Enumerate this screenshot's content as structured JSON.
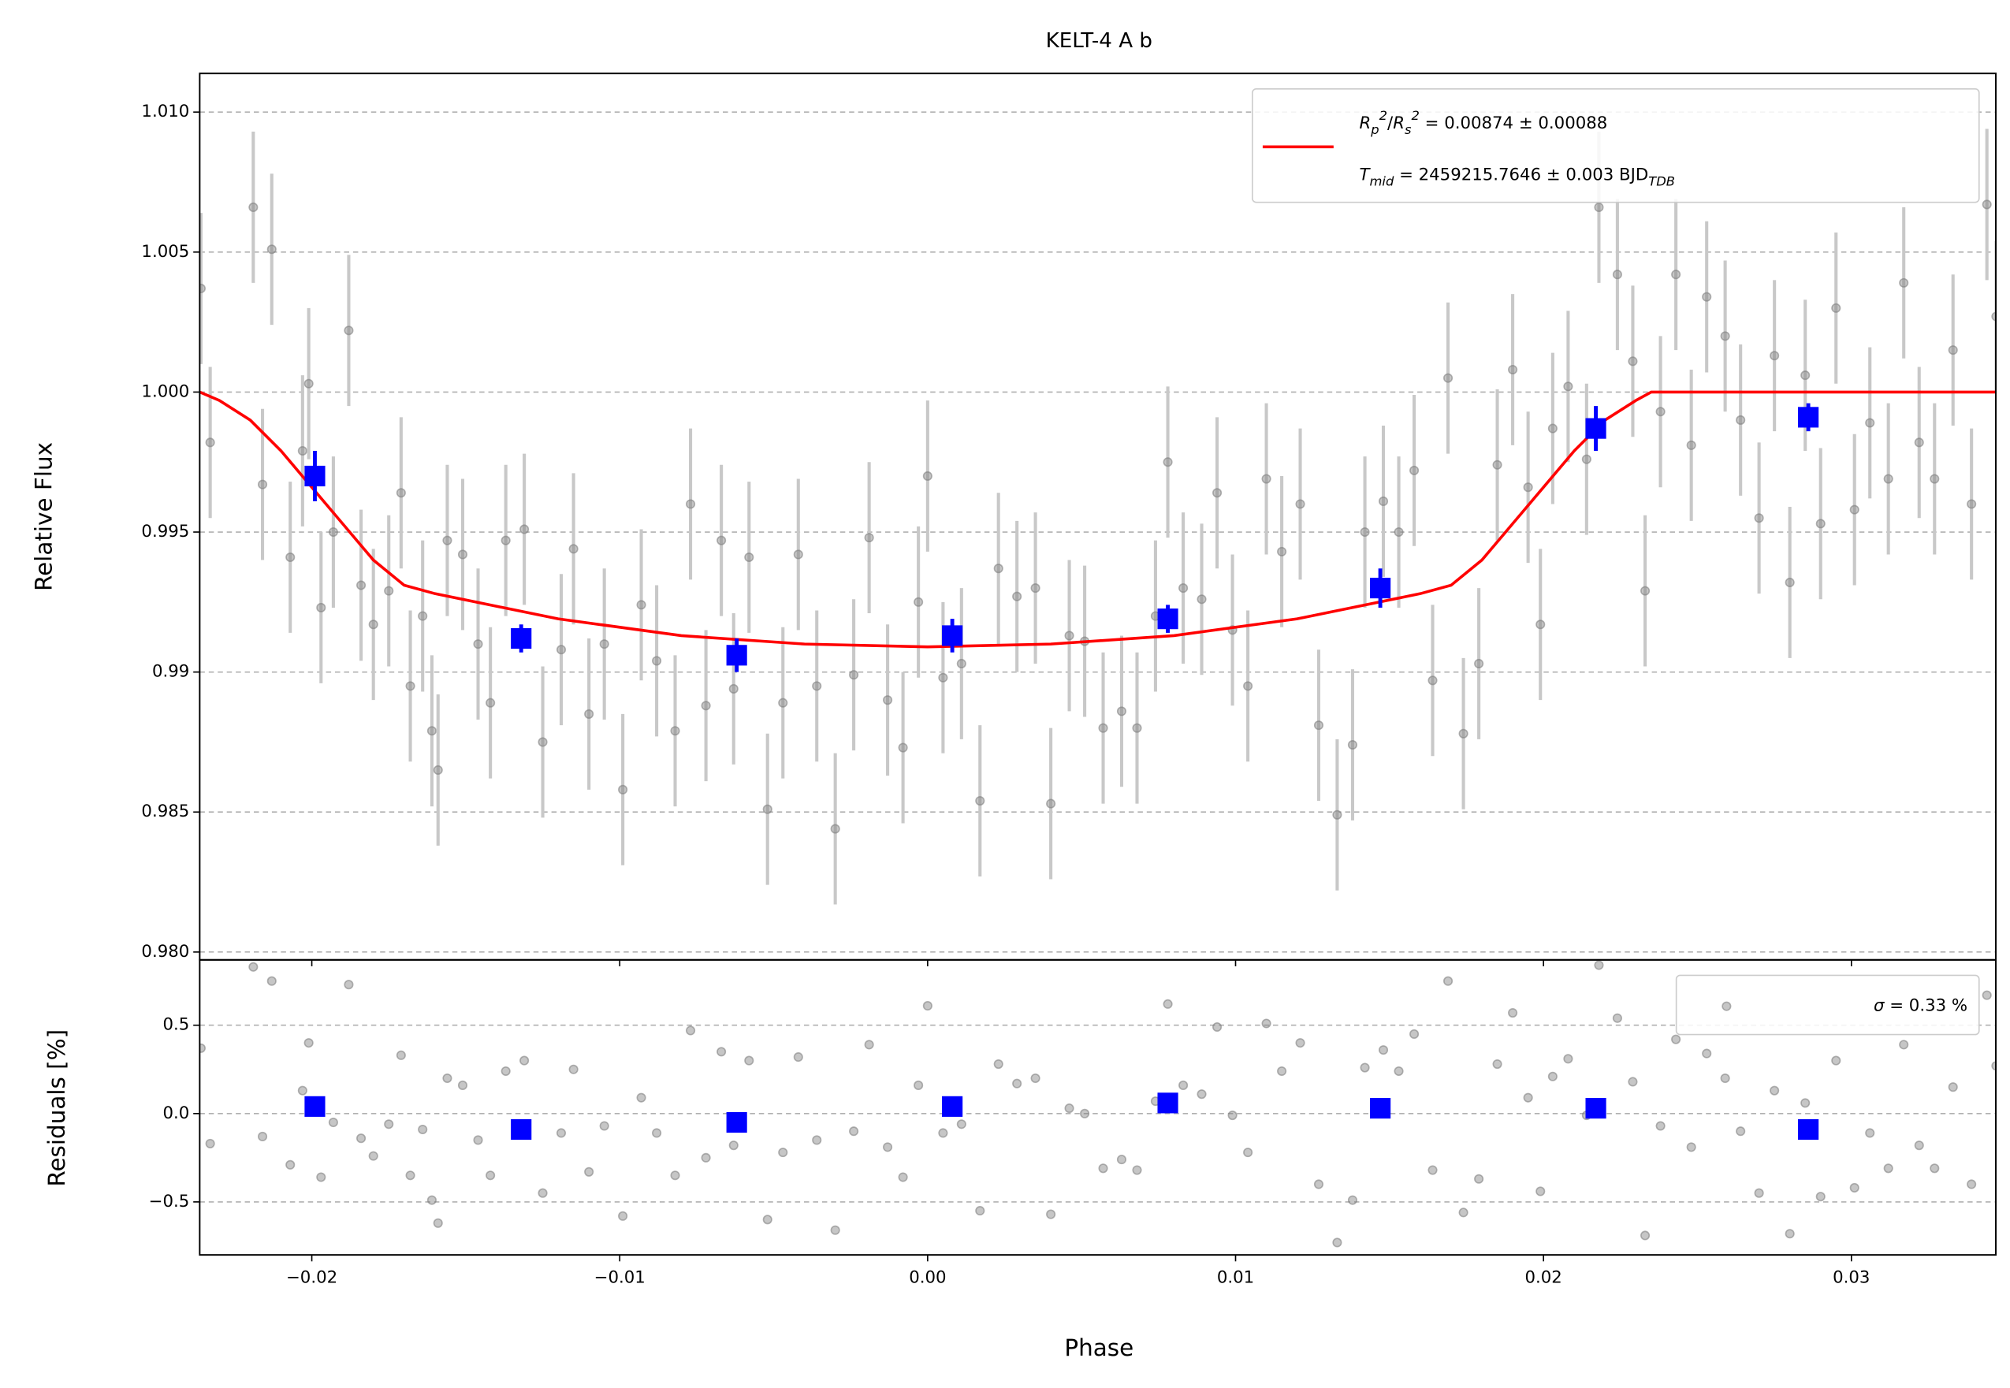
{
  "chart_data": [
    {
      "type": "scatter",
      "title": "KELT-4 A b",
      "ylabel": "Relative Flux",
      "xlim": [
        -0.02364,
        0.03469
      ],
      "ylim": [
        0.97972,
        1.01138
      ],
      "xticks": [
        {
          "value": -0.02,
          "label": "−0.02"
        },
        {
          "value": -0.01,
          "label": "−0.01"
        },
        {
          "value": 0,
          "label": "0.00"
        },
        0.01,
        0.02,
        0.03
      ],
      "yticks": [
        {
          "value": 0.98,
          "label": "0.980"
        },
        0.985,
        0.99,
        0.995,
        {
          "value": 1.0,
          "label": "1.000"
        },
        1.005,
        {
          "value": 1.01,
          "label": "1.010"
        }
      ],
      "grid": true,
      "legend": "upper right",
      "data": {
        "color": "#808080",
        "error_color": "#c8c8c8",
        "error": 0.0027,
        "x": [
          -0.0236,
          -0.0233,
          -0.0219,
          -0.0216,
          -0.0213,
          -0.0207,
          -0.0203,
          -0.0201,
          -0.0197,
          -0.0193,
          -0.0188,
          -0.0184,
          -0.018,
          -0.0175,
          -0.0171,
          -0.0168,
          -0.0164,
          -0.0161,
          -0.0159,
          -0.0156,
          -0.0151,
          -0.0146,
          -0.0142,
          -0.0137,
          -0.0131,
          -0.0125,
          -0.0119,
          -0.0115,
          -0.011,
          -0.0105,
          -0.0099,
          -0.0093,
          -0.0088,
          -0.0082,
          -0.0077,
          -0.0072,
          -0.0067,
          -0.0063,
          -0.0058,
          -0.0052,
          -0.0047,
          -0.0042,
          -0.0036,
          -0.003,
          -0.0024,
          -0.0019,
          -0.0013,
          -0.0008,
          -0.0003,
          0,
          0.0005,
          0.0011,
          0.0017,
          0.0023,
          0.0029,
          0.0035,
          0.004,
          0.0046,
          0.0051,
          0.0057,
          0.0063,
          0.0068,
          0.0074,
          0.0078,
          0.0083,
          0.0089,
          0.0094,
          0.0099,
          0.0104,
          0.011,
          0.0115,
          0.0121,
          0.0127,
          0.0133,
          0.0138,
          0.0142,
          0.0148,
          0.0153,
          0.0158,
          0.0164,
          0.0169,
          0.0174,
          0.0179,
          0.0185,
          0.019,
          0.0195,
          0.0199,
          0.0203,
          0.0208,
          0.0214,
          0.0218,
          0.0224,
          0.0229,
          0.0233,
          0.0238,
          0.0243,
          0.0248,
          0.0253,
          0.0259,
          0.0264,
          0.027,
          0.0275,
          0.028,
          0.0285,
          0.029,
          0.0295,
          0.0301,
          0.0306,
          0.0312,
          0.0317,
          0.0322,
          0.0327,
          0.0333,
          0.0339,
          0.0344,
          0.0347
        ],
        "values": [
          1.0037,
          0.9982,
          1.0066,
          0.9967,
          1.0051,
          0.9941,
          0.9979,
          1.0003,
          0.9923,
          0.995,
          1.0022,
          0.9931,
          0.9917,
          0.9929,
          0.9964,
          0.9895,
          0.992,
          0.9879,
          0.9865,
          0.9947,
          0.9942,
          0.991,
          0.9889,
          0.9947,
          0.9951,
          0.9875,
          0.9908,
          0.9944,
          0.9885,
          0.991,
          0.9858,
          0.9924,
          0.9904,
          0.9879,
          0.996,
          0.9888,
          0.9947,
          0.9894,
          0.9941,
          0.9851,
          0.9889,
          0.9942,
          0.9895,
          0.9844,
          0.9899,
          0.9948,
          0.989,
          0.9873,
          0.9925,
          0.997,
          0.9898,
          0.9903,
          0.9854,
          0.9937,
          0.9927,
          0.993,
          0.9853,
          0.9913,
          0.9911,
          0.988,
          0.9886,
          0.988,
          0.992,
          0.9975,
          0.993,
          0.9926,
          0.9964,
          0.9915,
          0.9895,
          0.9969,
          0.9943,
          0.996,
          0.9881,
          0.9849,
          0.9874,
          0.995,
          0.9961,
          0.995,
          0.9972,
          0.9897,
          1.0005,
          0.9878,
          0.9903,
          0.9974,
          1.0008,
          0.9966,
          0.9917,
          0.9987,
          1.0002,
          0.9976,
          1.0066,
          1.0042,
          1.0011,
          0.9929,
          0.9993,
          1.0042,
          0.9981,
          1.0034,
          1.002,
          0.999,
          0.9955,
          1.0013,
          0.9932,
          1.0006,
          0.9953,
          1.003,
          0.9958,
          0.9989,
          0.9969,
          1.0039,
          0.9982,
          0.9969,
          1.0015,
          0.996,
          1.0067,
          1.0027
        ]
      },
      "binned": {
        "color": "#0000ff",
        "x": [
          -0.0199,
          -0.0132,
          -0.0062,
          0.0008,
          0.0078,
          0.0147,
          0.0217,
          0.0286
        ],
        "values": [
          0.997,
          0.9912,
          0.9906,
          0.9913,
          0.9919,
          0.993,
          0.9987,
          0.9991
        ],
        "errors": [
          0.0009,
          0.0005,
          0.0006,
          0.0006,
          0.0005,
          0.0007,
          0.0008,
          0.0005
        ]
      },
      "model": {
        "color": "#ff0000",
        "x": [
          -0.02364,
          -0.023,
          -0.022,
          -0.021,
          -0.02,
          -0.019,
          -0.018,
          -0.017,
          -0.016,
          -0.012,
          -0.008,
          -0.004,
          0,
          0.004,
          0.008,
          0.012,
          0.016,
          0.017,
          0.018,
          0.019,
          0.02,
          0.021,
          0.022,
          0.023,
          0.0235,
          0.03469
        ],
        "values": [
          1.0,
          0.9997,
          0.999,
          0.9979,
          0.9966,
          0.9953,
          0.994,
          0.9931,
          0.9928,
          0.9919,
          0.9913,
          0.991,
          0.9909,
          0.991,
          0.9913,
          0.9919,
          0.9928,
          0.9931,
          0.994,
          0.9953,
          0.9966,
          0.9979,
          0.999,
          0.9997,
          1.0,
          1.0
        ],
        "legend": [
          [
            {
              "text": "R",
              "style": "it"
            },
            {
              "text": "p",
              "style": "sub"
            },
            {
              "text": "2",
              "style": "sup"
            },
            {
              "text": "/"
            },
            {
              "text": "R",
              "style": "it"
            },
            {
              "text": "s",
              "style": "sub"
            },
            {
              "text": "2",
              "style": "sup"
            },
            {
              "text": " = 0.00874 ± 0.00088"
            }
          ],
          [
            {
              "text": "T",
              "style": "it"
            },
            {
              "text": "mid",
              "style": "sub"
            },
            {
              "text": " = 2459215.7646 ± 0.003 BJD"
            },
            {
              "text": "TDB",
              "style": "sub"
            }
          ]
        ]
      }
    },
    {
      "type": "scatter",
      "ylabel": "Residuals [%]",
      "xlabel": "Phase",
      "ylim": [
        -0.8,
        0.87
      ],
      "yticks": [
        {
          "value": -0.5,
          "label": "−0.5"
        },
        {
          "value": 0,
          "label": "0.0"
        },
        0.5
      ],
      "grid": true,
      "legend": "upper right",
      "data": {
        "color": "#808080",
        "values": [
          0.37,
          -0.17,
          0.83,
          -0.13,
          0.75,
          -0.29,
          0.13,
          0.4,
          -0.36,
          -0.05,
          0.73,
          -0.14,
          -0.24,
          -0.06,
          0.33,
          -0.35,
          -0.09,
          -0.49,
          -0.62,
          0.2,
          0.16,
          -0.15,
          -0.35,
          0.24,
          0.3,
          -0.45,
          -0.11,
          0.25,
          -0.33,
          -0.07,
          -0.58,
          0.09,
          -0.11,
          -0.35,
          0.47,
          -0.25,
          0.35,
          -0.18,
          0.3,
          -0.6,
          -0.22,
          0.32,
          -0.15,
          -0.66,
          -0.1,
          0.39,
          -0.19,
          -0.36,
          0.16,
          0.61,
          -0.11,
          -0.06,
          -0.55,
          0.28,
          0.17,
          0.2,
          -0.57,
          0.03,
          0,
          -0.31,
          -0.26,
          -0.32,
          0.07,
          0.62,
          0.16,
          0.11,
          0.49,
          -0.01,
          -0.22,
          0.51,
          0.24,
          0.4,
          -0.4,
          -0.73,
          -0.49,
          0.26,
          0.36,
          0.24,
          0.45,
          -0.32,
          0.75,
          -0.56,
          -0.37,
          0.28,
          0.57,
          0.09,
          -0.44,
          0.21,
          0.31,
          -0.01,
          0.84,
          0.54,
          0.18,
          -0.69,
          -0.07,
          0.42,
          -0.19,
          0.34,
          0.2,
          -0.1,
          -0.45,
          0.13,
          -0.68,
          0.06,
          -0.47,
          0.3,
          -0.42,
          -0.11,
          -0.31,
          0.39,
          -0.18,
          -0.31,
          0.15,
          -0.4,
          0.67,
          0.27
        ],
        "legend": [
          {
            "text": "σ",
            "style": "it"
          },
          {
            "text": " = 0.33 %"
          }
        ]
      },
      "binned": {
        "color": "#0000ff",
        "values": [
          0.04,
          -0.09,
          -0.05,
          0.04,
          0.06,
          0.03,
          0.03,
          -0.09
        ]
      }
    }
  ]
}
